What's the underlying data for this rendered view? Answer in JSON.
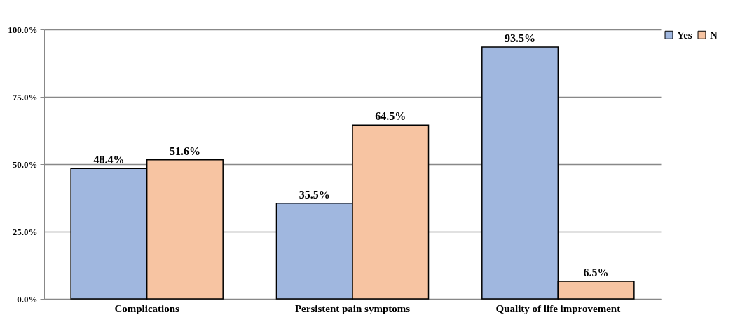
{
  "chart_data": {
    "type": "bar",
    "categories": [
      "Complications",
      "Persistent pain symptoms",
      "Quality of life improvement"
    ],
    "series": [
      {
        "name": "Yes",
        "color": "#a0b7df",
        "values": [
          48.4,
          35.5,
          93.5
        ],
        "value_labels": [
          "48.4%",
          "35.5%",
          "93.5%"
        ]
      },
      {
        "name": "N",
        "color": "#f7c4a2",
        "values": [
          51.6,
          64.5,
          6.5
        ],
        "value_labels": [
          "51.6%",
          "64.5%",
          "6.5%"
        ]
      }
    ],
    "ylim": [
      0,
      100
    ],
    "yticks": [
      {
        "value": 0,
        "label": "0.0%"
      },
      {
        "value": 25,
        "label": "25.0%"
      },
      {
        "value": 50,
        "label": "50.0%"
      },
      {
        "value": 75,
        "label": "75.0%"
      },
      {
        "value": 100,
        "label": "100.0%"
      }
    ],
    "grid": "y",
    "legend": "right"
  }
}
